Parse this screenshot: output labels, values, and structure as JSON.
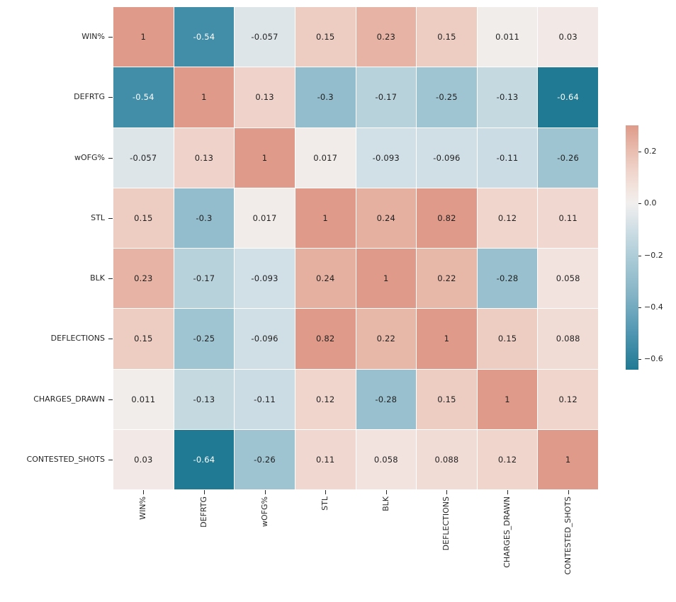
{
  "chart_data": {
    "type": "heatmap",
    "title": "",
    "xlabel": "",
    "ylabel": "",
    "grid": false,
    "legend_position": "right-colorbar",
    "variables": [
      "WIN%",
      "DEFRTG",
      "wOFG%",
      "STL",
      "BLK",
      "DEFLECTIONS",
      "CHARGES_DRAWN",
      "CONTESTED_SHOTS"
    ],
    "matrix": [
      [
        1,
        -0.54,
        -0.057,
        0.15,
        0.23,
        0.15,
        0.011,
        0.03
      ],
      [
        -0.54,
        1,
        0.13,
        -0.3,
        -0.17,
        -0.25,
        -0.13,
        -0.64
      ],
      [
        -0.057,
        0.13,
        1,
        0.017,
        -0.093,
        -0.096,
        -0.11,
        -0.26
      ],
      [
        0.15,
        -0.3,
        0.017,
        1,
        0.24,
        0.82,
        0.12,
        0.11
      ],
      [
        0.23,
        -0.17,
        -0.093,
        0.24,
        1,
        0.22,
        -0.28,
        0.058
      ],
      [
        0.15,
        -0.25,
        -0.096,
        0.82,
        0.22,
        1,
        0.15,
        0.088
      ],
      [
        0.011,
        -0.13,
        -0.11,
        0.12,
        -0.28,
        0.15,
        1,
        0.12
      ],
      [
        0.03,
        -0.64,
        -0.26,
        0.11,
        0.058,
        0.088,
        0.12,
        1
      ]
    ],
    "colorbar": {
      "tick_labels": [
        "0.2",
        "0.0",
        "−0.2",
        "−0.4",
        "−0.6"
      ],
      "tick_values": [
        0.2,
        0.0,
        -0.2,
        -0.4,
        -0.6
      ],
      "vmin": -0.64,
      "vmax": 0.3
    },
    "colors": {
      "colormap_anchors": [
        [
          -0.64,
          "#207a93"
        ],
        [
          -0.5,
          "#4f96b2"
        ],
        [
          -0.35,
          "#85b4c6"
        ],
        [
          -0.2,
          "#aecdd8"
        ],
        [
          -0.1,
          "#cfdee5"
        ],
        [
          0.0,
          "#f1efee"
        ],
        [
          0.06,
          "#f2e3dd"
        ],
        [
          0.12,
          "#f0d5cc"
        ],
        [
          0.2,
          "#e9beb0"
        ],
        [
          0.3,
          "#df9a89"
        ]
      ],
      "annotation_dark": "#1f1f1f",
      "annotation_light": "#ffffff",
      "tick_color": "#262626",
      "background": "#ffffff"
    }
  }
}
